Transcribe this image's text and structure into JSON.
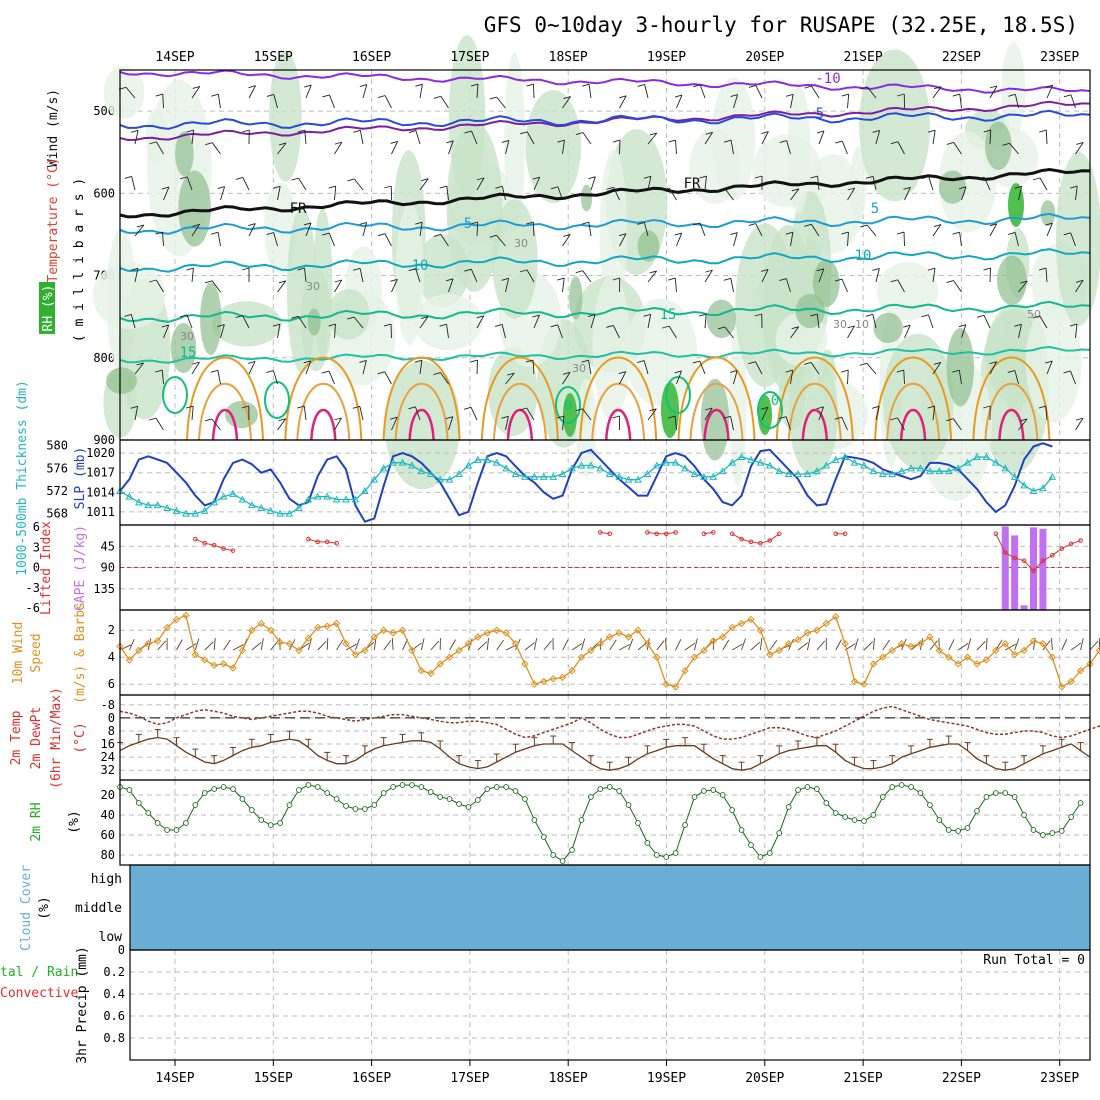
{
  "title": "GFS 0~10day 3-hourly for RUSAPE (32.25E, 18.5S)",
  "colors": {
    "wind_label": "#111111",
    "temperature_label": "#e04030",
    "rh_label": "#30a030",
    "thickness": "#20b8c0",
    "slp": "#2040c0",
    "lifted_index": "#e03030",
    "cape": "#c070f0",
    "wind10": "#e09020",
    "rh2m": "#20b020",
    "cloud": "#6aaed6",
    "precip_conv": "#e03030"
  },
  "chart_data": [
    {
      "panel": "upper_air",
      "type": "contour",
      "ylabel_parts": [
        "Wind",
        "(m/s)",
        "Temperature",
        "(°C)",
        "RH",
        "(%)"
      ],
      "ylabel_units": "m i l l i b a r s",
      "yticks": [
        "500",
        "600",
        "700",
        "800",
        "900"
      ],
      "ylim": [
        450,
        900
      ],
      "temp_contour_labels": [
        "-10",
        "5",
        "FR",
        "FR",
        "5",
        "5",
        "10",
        "10",
        "15",
        "15",
        "0",
        "0"
      ],
      "rh_contour_labels": [
        "30",
        "30",
        "30",
        "30",
        "30",
        "50",
        "10"
      ],
      "wind_barbs": true
    },
    {
      "panel": "thickness_slp",
      "type": "line",
      "ylabel_left": "1000-500mb Thickness (dm)",
      "ylabel_right": "SLP (mb)",
      "yticks_thickness": [
        "580",
        "576",
        "572",
        "568"
      ],
      "yticks_slp": [
        "1020",
        "1017",
        "1014",
        "1011"
      ],
      "series": [
        {
          "name": "SLP (mb)",
          "ylim": [
            1009,
            1022
          ],
          "values": [
            1014.2,
            1016,
            1019,
            1019.5,
            1019,
            1018.5,
            1017,
            1015.5,
            1013.5,
            1012,
            1012.5,
            1016,
            1018.5,
            1019,
            1018.3,
            1017,
            1017.5,
            1015.5,
            1013,
            1012,
            1012.5,
            1016.5,
            1019,
            1019.5,
            1017.5,
            1012,
            1009.5,
            1010,
            1015,
            1019.5,
            1020,
            1019.5,
            1018.5,
            1017,
            1015.5,
            1013,
            1010.5,
            1011,
            1015.5,
            1019.5,
            1020,
            1019.5,
            1018,
            1016.5,
            1015.5,
            1014,
            1013,
            1013.5,
            1017.5,
            1020,
            1020.5,
            1019,
            1017.5,
            1016,
            1014.8,
            1013.5,
            1013.5,
            1016.5,
            1019.5,
            1020,
            1019.5,
            1018,
            1016,
            1014.5,
            1012.5,
            1012,
            1013.5,
            1018,
            1020.3,
            1020.5,
            1019,
            1017.5,
            1016,
            1013.5,
            1012,
            1012.2,
            1016,
            1019.5,
            1019.3,
            1019,
            1018.5,
            1017.5,
            1017,
            1016.5,
            1016,
            1016.5,
            1018.5,
            1018.5,
            1018.2,
            1017.5,
            1016,
            1014.5,
            1012.5,
            1011,
            1012,
            1015,
            1019,
            1021,
            1021.5,
            1021
          ]
        },
        {
          "name": "1000-500mb Thickness (dm)",
          "ylim": [
            566,
            581
          ],
          "values": [
            572,
            571,
            570,
            569.5,
            569.5,
            569,
            568.5,
            568,
            568,
            568.5,
            570,
            571,
            571.5,
            570.5,
            569.5,
            569,
            568.5,
            568,
            568,
            569,
            570.5,
            571,
            571,
            570.5,
            570.5,
            570.5,
            572,
            574,
            576,
            577,
            577,
            576.5,
            575.5,
            575,
            574,
            574,
            575,
            576.5,
            577.5,
            577.5,
            577,
            576,
            575,
            574.5,
            574.5,
            574.5,
            574.5,
            575,
            576,
            576.5,
            576.5,
            576,
            575,
            574.5,
            574,
            574,
            575,
            576.5,
            577,
            577,
            576,
            575,
            574.5,
            574.5,
            575.5,
            577,
            578,
            577.5,
            577,
            576.5,
            575.5,
            575,
            575,
            575,
            575.5,
            576.5,
            577.5,
            578,
            577,
            576.5,
            575.5,
            575,
            575,
            575.5,
            576,
            576,
            575.5,
            575.5,
            575.5,
            576,
            577,
            578,
            578,
            577,
            576,
            574.5,
            573,
            572,
            572.5,
            574.5
          ]
        }
      ]
    },
    {
      "panel": "lifted_index_cape",
      "type": "line_bar",
      "ylabel_left": "Lifted Index",
      "ylabel_right": "CAPE (J/kg)",
      "yticks_li": [
        "-6",
        "-3",
        "0",
        "3",
        "6"
      ],
      "yticks_cape": [
        "135",
        "90",
        "45"
      ],
      "lifted_index_segments": [
        {
          "start_step": 8,
          "values": [
            4.2,
            3.6,
            3.3,
            2.8,
            2.5
          ]
        },
        {
          "start_step": 20,
          "values": [
            4.2,
            3.8,
            3.8,
            3.6
          ]
        },
        {
          "start_step": 51,
          "values": [
            5.2,
            5.0
          ]
        },
        {
          "start_step": 56,
          "values": [
            5.2,
            5.0,
            5.0,
            5.2
          ]
        },
        {
          "start_step": 62,
          "values": [
            5.0,
            5.2
          ]
        },
        {
          "start_step": 65,
          "values": [
            5.0,
            4.2,
            3.8,
            3.6,
            4.0,
            5.0
          ]
        },
        {
          "start_step": 76,
          "values": [
            5.0,
            5.0
          ]
        },
        {
          "start_step": 93,
          "values": [
            5.0,
            2.2,
            1.4,
            1.0,
            -0.5,
            1.0,
            1.8,
            2.8,
            3.5,
            4.0
          ]
        },
        {
          "start_step": 105,
          "values": [
            5.0,
            4.0
          ]
        }
      ],
      "cape_bars": [
        {
          "step": 94,
          "value": 3
        },
        {
          "step": 95,
          "value": 22
        },
        {
          "step": 96,
          "value": 170
        },
        {
          "step": 97,
          "value": 5
        },
        {
          "step": 98,
          "value": 8
        }
      ]
    },
    {
      "panel": "wind10m",
      "type": "line",
      "ylabel": "10m Wind Speed (m/s) & Barbs",
      "yticks": [
        "6",
        "4",
        "2"
      ],
      "ylim": [
        0.5,
        6.8
      ],
      "values": [
        3.2,
        4.2,
        3.5,
        3.0,
        2.8,
        1.8,
        1.2,
        0.9,
        3.8,
        4.2,
        4.6,
        4.5,
        4.8,
        3.5,
        2.0,
        1.5,
        2.0,
        2.9,
        3.0,
        3.5,
        2.6,
        1.8,
        1.7,
        1.5,
        3.0,
        3.8,
        3.5,
        2.5,
        2.0,
        2.2,
        2.0,
        3.5,
        5.0,
        5.2,
        4.5,
        4.0,
        3.5,
        3.0,
        2.5,
        2.2,
        2.0,
        2.2,
        3.0,
        4.5,
        6.0,
        5.8,
        5.6,
        5.5,
        5.0,
        4.0,
        3.5,
        3.0,
        2.5,
        2.2,
        2.5,
        2.0,
        3.0,
        4.0,
        6.0,
        6.2,
        5.0,
        4.0,
        3.5,
        2.8,
        2.5,
        1.8,
        1.5,
        1.2,
        2.0,
        3.8,
        3.5,
        3.0,
        2.7,
        2.2,
        2.0,
        1.5,
        1.0,
        3.0,
        5.8,
        6.0,
        4.5,
        4.0,
        3.5,
        3.0,
        3.2,
        3.0,
        2.5,
        3.5,
        4.0,
        4.5,
        4.0,
        4.5,
        4.2,
        3.5,
        3.0,
        3.8,
        3.5,
        2.8,
        3.0,
        4.0,
        6.2,
        5.8,
        5.0,
        4.5,
        3.5,
        3.0,
        3.3
      ]
    },
    {
      "panel": "temp_dewpt",
      "type": "area_line",
      "ylabel": "2m Temp 2m DewPt (6hr Min/Max) (°C)",
      "yticks": [
        "32",
        "24",
        "16",
        "8",
        "0",
        "-8"
      ],
      "ylim": [
        -14,
        38
      ],
      "temperature": [
        20,
        17,
        15,
        13,
        12,
        13,
        17,
        21,
        24,
        27,
        28,
        26,
        23,
        20,
        18,
        17,
        15,
        14,
        13,
        14,
        18,
        23,
        26,
        28,
        28,
        26,
        22,
        19,
        17,
        16,
        15,
        14,
        14,
        15,
        19,
        24,
        28,
        30,
        31,
        30,
        27,
        24,
        21,
        19,
        17,
        16,
        16,
        16,
        20,
        24,
        28,
        31,
        32,
        31,
        29,
        25,
        22,
        20,
        18,
        17,
        17,
        17,
        21,
        25,
        28,
        31,
        32,
        31,
        28,
        25,
        22,
        20,
        19,
        18,
        17,
        17,
        21,
        26,
        29,
        31,
        31,
        30,
        28,
        24,
        22,
        20,
        18,
        17,
        16,
        16,
        20,
        25,
        28,
        31,
        32,
        31,
        28,
        25,
        22,
        20,
        18,
        16,
        20,
        24
      ],
      "dewpoint": [
        -4,
        -3,
        -1,
        2,
        4,
        3,
        0,
        -2,
        -4,
        -5,
        -4,
        -3,
        -1,
        0,
        1,
        0,
        -1,
        -2,
        -3,
        -4,
        -4,
        -3,
        -1,
        0,
        1,
        2,
        1,
        0,
        -1,
        -2,
        -2,
        -1,
        0,
        1,
        2,
        3,
        3,
        2,
        2,
        3,
        4,
        7,
        10,
        12,
        11,
        9,
        7,
        5,
        3,
        0,
        3,
        7,
        10,
        12,
        12,
        10,
        8,
        6,
        5,
        4,
        4,
        5,
        8,
        11,
        13,
        13,
        12,
        10,
        8,
        6,
        6,
        7,
        9,
        11,
        12,
        10,
        8,
        5,
        2,
        -1,
        -4,
        -6,
        -7,
        -5,
        -3,
        -1,
        1,
        2,
        3,
        4,
        5,
        7,
        9,
        10,
        10,
        9,
        8,
        8,
        9,
        11,
        12,
        11,
        9,
        7,
        5,
        3
      ]
    },
    {
      "panel": "rh2m",
      "type": "area",
      "ylabel": "2m RH (%)",
      "yticks": [
        "80",
        "60",
        "40",
        "20"
      ],
      "ylim": [
        5,
        90
      ],
      "values": [
        12,
        15,
        28,
        38,
        48,
        55,
        55,
        48,
        30,
        18,
        14,
        12,
        14,
        24,
        35,
        45,
        50,
        48,
        30,
        15,
        10,
        12,
        18,
        24,
        31,
        34,
        34,
        30,
        18,
        12,
        10,
        10,
        12,
        17,
        22,
        24,
        29,
        32,
        25,
        14,
        12,
        12,
        16,
        24,
        45,
        62,
        80,
        86,
        75,
        45,
        22,
        14,
        12,
        16,
        30,
        48,
        68,
        80,
        82,
        78,
        50,
        22,
        16,
        15,
        20,
        35,
        55,
        70,
        82,
        78,
        58,
        32,
        15,
        12,
        14,
        28,
        38,
        42,
        45,
        46,
        40,
        22,
        12,
        10,
        12,
        18,
        30,
        45,
        55,
        56,
        53,
        36,
        22,
        18,
        18,
        22,
        40,
        55,
        60,
        58,
        56,
        42,
        28
      ]
    },
    {
      "panel": "cloud_cover",
      "type": "area",
      "ylabel": "Cloud Cover (%)",
      "layers": [
        "high",
        "middle",
        "low"
      ]
    },
    {
      "panel": "precip",
      "type": "bar",
      "ylabel_left": "Total / Rain",
      "ylabel_left2": "Convective",
      "ylabel": "3hr Precip (mm)",
      "yticks": [
        "0.8",
        "0.6",
        "0.4",
        "0.2",
        "0"
      ],
      "ylim": [
        0,
        1
      ],
      "run_total_label": "Run Total = 0",
      "values": []
    }
  ],
  "x_axis": {
    "dates": [
      "14SEP",
      "15SEP",
      "16SEP",
      "17SEP",
      "18SEP",
      "19SEP",
      "20SEP",
      "21SEP",
      "22SEP",
      "23SEP"
    ],
    "steps": 104,
    "hours_per_step": 3
  },
  "panel_labels": {
    "wind": "Wind (m/s)",
    "temperature": "Temperature (°C)",
    "rh": "RH (%)",
    "millibars": "( m i l l i b a r s )",
    "thickness": "1000-500mb Thickness (dm)",
    "slp": "SLP (mb)",
    "lifted_index": "Lifted Index",
    "cape": "CAPE (J/kg)",
    "wind10_line1": "10m Wind",
    "wind10_line2": "Speed",
    "wind10_line3": "(m/s) & Barbs",
    "temp_line1": "2m Temp",
    "temp_line2": "2m DewPt",
    "temp_line3": "(6hr Min/Max)",
    "temp_line4": "(°C)",
    "rh2m": "2m RH",
    "rh2m_units": "(%)",
    "cloud1": "Cloud Cover",
    "cloud2": "(%)",
    "precip_total": "tal / Rain",
    "precip_conv": "Convective",
    "precip_axis": "3hr Precip (mm)"
  }
}
